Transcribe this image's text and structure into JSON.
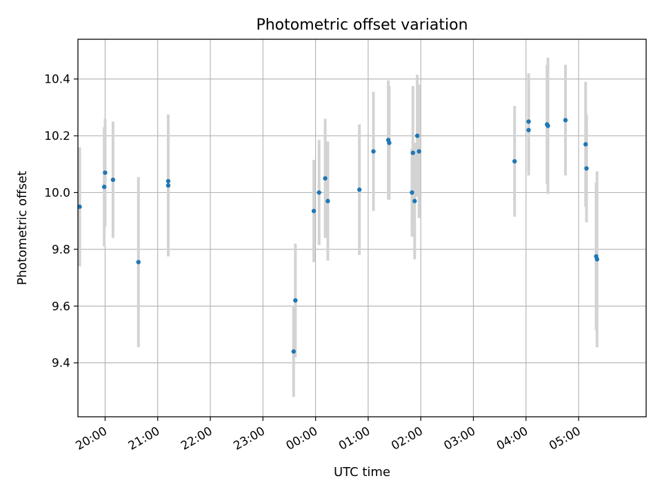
{
  "chart_data": {
    "type": "scatter",
    "title": "Photometric offset variation",
    "xlabel": "UTC time",
    "ylabel": "Photometric offset",
    "x_axis_kind": "time",
    "x_tick_labels": [
      "20:00",
      "21:00",
      "22:00",
      "23:00",
      "00:00",
      "01:00",
      "02:00",
      "03:00",
      "04:00",
      "05:00"
    ],
    "y_ticks": [
      9.4,
      9.6,
      9.8,
      10.0,
      10.2,
      10.4
    ],
    "y_tick_labels": [
      "9.4",
      "9.6",
      "9.8",
      "10.0",
      "10.2",
      "10.4"
    ],
    "xlim": [
      "19:29",
      "06:17"
    ],
    "ylim": [
      9.21,
      10.54
    ],
    "grid": true,
    "colors": {
      "points": "#1f77b4",
      "error_bars": "#d3d3d3",
      "grid": "#b0b0b0"
    },
    "points": [
      {
        "x": "19:31",
        "y": 9.95,
        "err": 0.21
      },
      {
        "x": "19:59",
        "y": 10.02,
        "err": 0.21
      },
      {
        "x": "20:00",
        "y": 10.07,
        "err": 0.19
      },
      {
        "x": "20:09",
        "y": 10.045,
        "err": 0.205
      },
      {
        "x": "20:38",
        "y": 9.755,
        "err": 0.3
      },
      {
        "x": "21:12",
        "y": 10.025,
        "err": 0.25
      },
      {
        "x": "21:12",
        "y": 10.04,
        "err": 0.235
      },
      {
        "x": "23:35",
        "y": 9.44,
        "err": 0.16
      },
      {
        "x": "23:37",
        "y": 9.62,
        "err": 0.2
      },
      {
        "x": "23:58",
        "y": 9.935,
        "err": 0.18
      },
      {
        "x": "00:04",
        "y": 10.0,
        "err": 0.185
      },
      {
        "x": "00:11",
        "y": 10.05,
        "err": 0.21
      },
      {
        "x": "00:14",
        "y": 9.97,
        "err": 0.21
      },
      {
        "x": "00:50",
        "y": 10.01,
        "err": 0.23
      },
      {
        "x": "01:06",
        "y": 10.145,
        "err": 0.21
      },
      {
        "x": "01:23",
        "y": 10.185,
        "err": 0.21
      },
      {
        "x": "01:24",
        "y": 10.175,
        "err": 0.2
      },
      {
        "x": "01:50",
        "y": 10.0,
        "err": 0.155
      },
      {
        "x": "01:51",
        "y": 10.14,
        "err": 0.235
      },
      {
        "x": "01:53",
        "y": 9.97,
        "err": 0.205
      },
      {
        "x": "01:56",
        "y": 10.2,
        "err": 0.215
      },
      {
        "x": "01:58",
        "y": 10.145,
        "err": 0.235
      },
      {
        "x": "03:47",
        "y": 10.11,
        "err": 0.195
      },
      {
        "x": "04:03",
        "y": 10.22,
        "err": 0.16
      },
      {
        "x": "04:03",
        "y": 10.25,
        "err": 0.17
      },
      {
        "x": "04:24",
        "y": 10.24,
        "err": 0.21
      },
      {
        "x": "04:25",
        "y": 10.235,
        "err": 0.24
      },
      {
        "x": "04:45",
        "y": 10.255,
        "err": 0.195
      },
      {
        "x": "05:08",
        "y": 10.17,
        "err": 0.22
      },
      {
        "x": "05:09",
        "y": 10.085,
        "err": 0.19
      },
      {
        "x": "05:20",
        "y": 9.775,
        "err": 0.26
      },
      {
        "x": "05:21",
        "y": 9.765,
        "err": 0.31
      }
    ]
  }
}
